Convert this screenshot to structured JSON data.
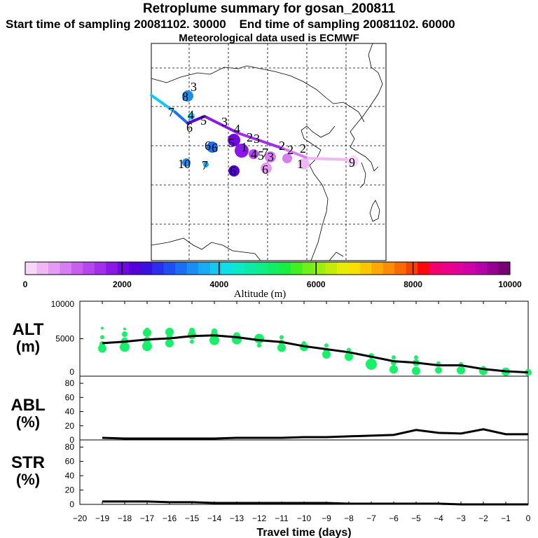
{
  "header": {
    "title": "Retroplume summary for gosan_200811",
    "start_label": "Start time of sampling 20081102. 30000",
    "end_label": "End time of sampling 20081102. 60000",
    "met_label": "Meteorological data used is ECMWF"
  },
  "colorbar": {
    "ticks": [
      "0",
      "2000",
      "4000",
      "6000",
      "8000",
      "10000"
    ],
    "label": "Altitude  (m)",
    "colors": [
      "#f7d6f7",
      "#efb8f5",
      "#e59af3",
      "#d77ef2",
      "#c760ef",
      "#b646ee",
      "#a32fec",
      "#8c18e8",
      "#7306e2",
      "#5600d9",
      "#3a0fe0",
      "#2a2ef0",
      "#1d4ff3",
      "#1a6ff3",
      "#1a8ef3",
      "#18acf2",
      "#14c8ee",
      "#10dfe6",
      "#0de8c8",
      "#0eeaa6",
      "#10ec86",
      "#12ee64",
      "#16ef42",
      "#40f022",
      "#6ff017",
      "#9aee10",
      "#c3ec0b",
      "#e6ec06",
      "#f8e004",
      "#fbc602",
      "#fcaa02",
      "#fc8c02",
      "#fb6a02",
      "#f94202",
      "#f80a0a",
      "#f4006a",
      "#ec0086",
      "#e0009a",
      "#cf00a8",
      "#b600a8",
      "#960092",
      "#760074"
    ]
  },
  "map_labels": {
    "points": [
      "8",
      "3",
      "7",
      "4",
      "6",
      "5",
      "3",
      "4",
      "5",
      "6",
      "6",
      "10",
      "7",
      "6",
      "1",
      "2",
      "3",
      "4",
      "5",
      "7",
      "3",
      "6",
      "2",
      "2",
      "1",
      "2",
      "9"
    ]
  },
  "panels": {
    "alt_label": "ALT",
    "alt_unit": "(m)",
    "abl_label": "ABL",
    "abl_unit": "(%)",
    "str_label": "STR",
    "str_unit": "(%)",
    "alt_ticks": [
      "10000",
      "5000",
      "0"
    ],
    "pct_ticks": [
      "80",
      "60",
      "40",
      "20",
      "0"
    ],
    "x_ticks": [
      "−20",
      "−19",
      "−18",
      "−17",
      "−16",
      "−15",
      "−14",
      "−13",
      "−12",
      "−11",
      "−10",
      "−9",
      "−8",
      "−7",
      "−6",
      "−5",
      "−4",
      "−3",
      "−2",
      "−1",
      "0"
    ],
    "xlabel": "Travel time (days)"
  },
  "chart_data": [
    {
      "type": "scatter",
      "title": "ALT (m)",
      "xlabel": "Travel time (days)",
      "ylabel": "ALT (m)",
      "xlim": [
        -20,
        0
      ],
      "ylim": [
        0,
        10000
      ],
      "mean_line": {
        "x": [
          -19,
          -18,
          -17,
          -16,
          -15,
          -14,
          -13,
          -12,
          -11,
          -10,
          -9,
          -8,
          -7,
          -6,
          -5,
          -4,
          -3,
          -2,
          -1,
          0
        ],
        "y": [
          4400,
          4600,
          4900,
          5050,
          5350,
          5450,
          5200,
          4800,
          4550,
          4000,
          3600,
          3200,
          2600,
          2000,
          1800,
          1450,
          1450,
          950,
          650,
          500
        ]
      },
      "points": {
        "x": [
          -19,
          -19,
          -19,
          -19,
          -18,
          -18,
          -18,
          -18,
          -17,
          -17,
          -17,
          -17,
          -16,
          -16,
          -16,
          -15,
          -15,
          -15,
          -14,
          -14,
          -14,
          -13,
          -13,
          -12,
          -12,
          -11,
          -11,
          -11,
          -10,
          -10,
          -9,
          -9,
          -9,
          -8,
          -8,
          -8,
          -7,
          -7,
          -6,
          -6,
          -6,
          -5,
          -5,
          -5,
          -4,
          -4,
          -3,
          -3,
          -2,
          -2,
          -1,
          0
        ],
        "y": [
          3700,
          4300,
          5200,
          6400,
          3900,
          4700,
          5600,
          6300,
          4000,
          4800,
          5800,
          6200,
          4400,
          5300,
          5900,
          4600,
          5500,
          6100,
          4800,
          5600,
          6000,
          4900,
          5400,
          4100,
          5000,
          3800,
          4500,
          5200,
          3900,
          4400,
          2900,
          3400,
          4100,
          2600,
          3000,
          3500,
          1600,
          2700,
          900,
          1800,
          2500,
          700,
          1800,
          2500,
          800,
          1700,
          800,
          1600,
          700,
          1100,
          600,
          500
        ],
        "r": [
          6,
          4,
          3,
          2,
          7,
          5,
          4,
          2,
          7,
          5,
          6,
          3,
          6,
          4,
          6,
          3,
          6,
          4,
          7,
          5,
          4,
          7,
          5,
          3,
          7,
          6,
          4,
          3,
          6,
          3,
          6,
          4,
          3,
          6,
          4,
          3,
          8,
          4,
          6,
          4,
          3,
          6,
          5,
          3,
          5,
          3,
          6,
          3,
          6,
          3,
          6,
          5
        ]
      }
    },
    {
      "type": "line",
      "title": "ABL (%)",
      "ylabel": "ABL (%)",
      "xlim": [
        -20,
        0
      ],
      "ylim": [
        0,
        90
      ],
      "x": [
        -19,
        -18,
        -17,
        -16,
        -15,
        -14,
        -13,
        -12,
        -11,
        -10,
        -9,
        -8,
        -7,
        -6,
        -5,
        -4,
        -3,
        -2,
        -1,
        0
      ],
      "y": [
        3,
        2,
        2,
        2,
        2,
        2,
        3,
        3,
        3,
        4,
        4,
        5,
        6,
        7,
        14,
        10,
        9,
        15,
        8,
        8
      ]
    },
    {
      "type": "line",
      "title": "STR (%)",
      "ylabel": "STR (%)",
      "xlim": [
        -20,
        0
      ],
      "ylim": [
        0,
        90
      ],
      "x": [
        -19,
        -18,
        -17,
        -16,
        -15,
        -14,
        -13,
        -12,
        -11,
        -10,
        -9,
        -8,
        -7,
        -6,
        -5,
        -4,
        -3,
        -2,
        -1,
        0
      ],
      "y": [
        4,
        4,
        4,
        3,
        3,
        2,
        2,
        2,
        2,
        2,
        2,
        1,
        1,
        1,
        1,
        1,
        0,
        0,
        0,
        0
      ]
    }
  ]
}
